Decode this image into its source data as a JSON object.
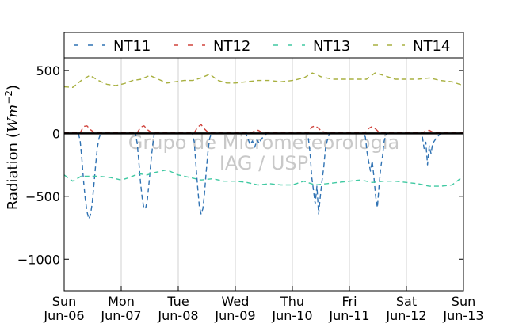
{
  "chart_data": {
    "type": "line",
    "title": "",
    "xlabel": "",
    "ylabel": "Radiation (Wm⁻²)",
    "ylabel_parts": {
      "pre": "Radiation (",
      "unit_base": "Wm",
      "unit_exp": "−2",
      "post": ")"
    },
    "xlim": [
      0,
      7
    ],
    "ylim": [
      -1250,
      600
    ],
    "yticks": [
      500,
      0,
      -500,
      -1000
    ],
    "ytick_labels": [
      "500",
      "0",
      "−5 00",
      "−1000"
    ],
    "xticks": [
      {
        "x": 0,
        "day": "Sun",
        "date": "Jun-06"
      },
      {
        "x": 1,
        "day": "Mon",
        "date": "Jun-07"
      },
      {
        "x": 2,
        "day": "Tue",
        "date": "Jun-08"
      },
      {
        "x": 3,
        "day": "Wed",
        "date": "Jun-09"
      },
      {
        "x": 4,
        "day": "Thu",
        "date": "Jun-10"
      },
      {
        "x": 5,
        "day": "Fri",
        "date": "Jun-11"
      },
      {
        "x": 6,
        "day": "Sat",
        "date": "Jun-12"
      },
      {
        "x": 7,
        "day": "Sun",
        "date": "Jun-13"
      }
    ],
    "grid": "vertical",
    "zero_line": true,
    "legend_position": "top",
    "watermark": [
      "Grupo de Micrometeorologia",
      "IAG / USP"
    ],
    "series": [
      {
        "name": "NT11",
        "color": "#2f72b3",
        "points": [
          [
            0.25,
            0
          ],
          [
            0.28,
            -60
          ],
          [
            0.31,
            -200
          ],
          [
            0.34,
            -380
          ],
          [
            0.37,
            -520
          ],
          [
            0.4,
            -620
          ],
          [
            0.43,
            -680
          ],
          [
            0.46,
            -650
          ],
          [
            0.49,
            -560
          ],
          [
            0.52,
            -420
          ],
          [
            0.55,
            -260
          ],
          [
            0.58,
            -120
          ],
          [
            0.61,
            -40
          ],
          [
            0.64,
            0
          ],
          [
            1.25,
            0
          ],
          [
            1.28,
            -80
          ],
          [
            1.31,
            -230
          ],
          [
            1.34,
            -400
          ],
          [
            1.37,
            -520
          ],
          [
            1.4,
            -600
          ],
          [
            1.43,
            -590
          ],
          [
            1.46,
            -520
          ],
          [
            1.49,
            -380
          ],
          [
            1.52,
            -230
          ],
          [
            1.55,
            -100
          ],
          [
            1.58,
            0
          ],
          [
            2.25,
            0
          ],
          [
            2.28,
            -70
          ],
          [
            2.31,
            -250
          ],
          [
            2.34,
            -430
          ],
          [
            2.37,
            -580
          ],
          [
            2.4,
            -640
          ],
          [
            2.43,
            -600
          ],
          [
            2.46,
            -480
          ],
          [
            2.49,
            -300
          ],
          [
            2.52,
            -150
          ],
          [
            2.55,
            -40
          ],
          [
            2.58,
            0
          ],
          [
            3.18,
            0
          ],
          [
            3.22,
            -40
          ],
          [
            3.26,
            -90
          ],
          [
            3.3,
            -60
          ],
          [
            3.34,
            -110
          ],
          [
            3.38,
            -50
          ],
          [
            3.42,
            -80
          ],
          [
            3.46,
            -40
          ],
          [
            3.5,
            -30
          ],
          [
            3.55,
            0
          ],
          [
            4.25,
            0
          ],
          [
            4.28,
            -40
          ],
          [
            4.31,
            -150
          ],
          [
            4.34,
            -350
          ],
          [
            4.37,
            -450
          ],
          [
            4.4,
            -560
          ],
          [
            4.43,
            -420
          ],
          [
            4.46,
            -640
          ],
          [
            4.49,
            -500
          ],
          [
            4.52,
            -380
          ],
          [
            4.55,
            -270
          ],
          [
            4.58,
            -120
          ],
          [
            4.61,
            -60
          ],
          [
            4.65,
            0
          ],
          [
            5.25,
            0
          ],
          [
            5.28,
            -30
          ],
          [
            5.31,
            -150
          ],
          [
            5.34,
            -230
          ],
          [
            5.37,
            -300
          ],
          [
            5.4,
            -220
          ],
          [
            5.43,
            -350
          ],
          [
            5.46,
            -500
          ],
          [
            5.49,
            -590
          ],
          [
            5.52,
            -420
          ],
          [
            5.55,
            -270
          ],
          [
            5.58,
            -180
          ],
          [
            5.61,
            -60
          ],
          [
            5.65,
            0
          ],
          [
            6.25,
            0
          ],
          [
            6.28,
            -30
          ],
          [
            6.31,
            -120
          ],
          [
            6.34,
            -70
          ],
          [
            6.37,
            -250
          ],
          [
            6.4,
            -100
          ],
          [
            6.43,
            -160
          ],
          [
            6.46,
            -80
          ],
          [
            6.49,
            -60
          ],
          [
            6.52,
            -40
          ],
          [
            6.56,
            -20
          ],
          [
            6.6,
            0
          ]
        ]
      },
      {
        "name": "NT12",
        "color": "#d0433c",
        "points": [
          [
            0.0,
            5
          ],
          [
            0.28,
            5
          ],
          [
            0.34,
            55
          ],
          [
            0.4,
            60
          ],
          [
            0.46,
            30
          ],
          [
            0.52,
            10
          ],
          [
            0.62,
            5
          ],
          [
            1.28,
            5
          ],
          [
            1.34,
            50
          ],
          [
            1.4,
            60
          ],
          [
            1.46,
            30
          ],
          [
            1.52,
            10
          ],
          [
            1.62,
            5
          ],
          [
            2.28,
            5
          ],
          [
            2.34,
            50
          ],
          [
            2.4,
            70
          ],
          [
            2.46,
            35
          ],
          [
            2.52,
            10
          ],
          [
            2.62,
            5
          ],
          [
            3.28,
            5
          ],
          [
            3.34,
            20
          ],
          [
            3.4,
            25
          ],
          [
            3.46,
            10
          ],
          [
            3.55,
            5
          ],
          [
            4.28,
            5
          ],
          [
            4.34,
            50
          ],
          [
            4.4,
            60
          ],
          [
            4.46,
            40
          ],
          [
            4.52,
            15
          ],
          [
            4.62,
            5
          ],
          [
            5.28,
            5
          ],
          [
            5.34,
            40
          ],
          [
            5.4,
            55
          ],
          [
            5.46,
            35
          ],
          [
            5.52,
            10
          ],
          [
            5.62,
            5
          ],
          [
            6.28,
            5
          ],
          [
            6.34,
            20
          ],
          [
            6.4,
            25
          ],
          [
            6.46,
            10
          ],
          [
            6.55,
            5
          ],
          [
            7.0,
            5
          ]
        ]
      },
      {
        "name": "NT13",
        "color": "#40c9a2",
        "points": [
          [
            0.0,
            -330
          ],
          [
            0.15,
            -380
          ],
          [
            0.3,
            -340
          ],
          [
            0.45,
            -340
          ],
          [
            0.6,
            -340
          ],
          [
            0.8,
            -350
          ],
          [
            1.0,
            -370
          ],
          [
            1.15,
            -350
          ],
          [
            1.3,
            -320
          ],
          [
            1.45,
            -330
          ],
          [
            1.6,
            -310
          ],
          [
            1.8,
            -290
          ],
          [
            2.0,
            -330
          ],
          [
            2.2,
            -350
          ],
          [
            2.4,
            -370
          ],
          [
            2.6,
            -360
          ],
          [
            2.8,
            -380
          ],
          [
            3.0,
            -380
          ],
          [
            3.2,
            -390
          ],
          [
            3.4,
            -410
          ],
          [
            3.6,
            -400
          ],
          [
            3.8,
            -410
          ],
          [
            4.0,
            -410
          ],
          [
            4.2,
            -380
          ],
          [
            4.4,
            -410
          ],
          [
            4.6,
            -400
          ],
          [
            4.8,
            -390
          ],
          [
            5.0,
            -380
          ],
          [
            5.2,
            -370
          ],
          [
            5.4,
            -390
          ],
          [
            5.6,
            -380
          ],
          [
            5.8,
            -380
          ],
          [
            6.0,
            -390
          ],
          [
            6.2,
            -400
          ],
          [
            6.4,
            -420
          ],
          [
            6.6,
            -420
          ],
          [
            6.8,
            -410
          ],
          [
            7.0,
            -340
          ]
        ]
      },
      {
        "name": "NT14",
        "color": "#a8b040",
        "points": [
          [
            0.0,
            370
          ],
          [
            0.15,
            365
          ],
          [
            0.3,
            420
          ],
          [
            0.45,
            460
          ],
          [
            0.6,
            420
          ],
          [
            0.75,
            390
          ],
          [
            0.9,
            380
          ],
          [
            1.05,
            395
          ],
          [
            1.2,
            420
          ],
          [
            1.35,
            430
          ],
          [
            1.5,
            460
          ],
          [
            1.65,
            430
          ],
          [
            1.8,
            400
          ],
          [
            1.95,
            410
          ],
          [
            2.1,
            420
          ],
          [
            2.25,
            420
          ],
          [
            2.4,
            440
          ],
          [
            2.55,
            470
          ],
          [
            2.7,
            420
          ],
          [
            2.85,
            400
          ],
          [
            3.0,
            400
          ],
          [
            3.2,
            410
          ],
          [
            3.4,
            420
          ],
          [
            3.6,
            420
          ],
          [
            3.8,
            410
          ],
          [
            4.0,
            420
          ],
          [
            4.2,
            440
          ],
          [
            4.35,
            480
          ],
          [
            4.5,
            450
          ],
          [
            4.7,
            430
          ],
          [
            4.9,
            430
          ],
          [
            5.1,
            430
          ],
          [
            5.3,
            430
          ],
          [
            5.45,
            480
          ],
          [
            5.6,
            460
          ],
          [
            5.8,
            430
          ],
          [
            6.0,
            430
          ],
          [
            6.2,
            430
          ],
          [
            6.4,
            440
          ],
          [
            6.6,
            420
          ],
          [
            6.8,
            410
          ],
          [
            7.0,
            380
          ]
        ]
      }
    ]
  }
}
